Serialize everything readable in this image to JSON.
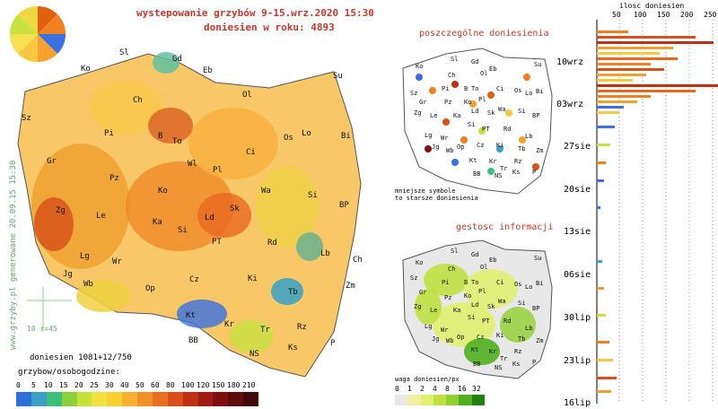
{
  "header": {
    "line1": "wystepowanie grzybów 9-15.wrz.2020 15:30",
    "line2": "doniesien w roku: 4893"
  },
  "side_text": "www.grzyby.pl generowane 20.09.15 15:30",
  "main_map": {
    "scale_label": "10 r=45",
    "reports": "doniesien 1081+12/750",
    "legend_title": "grzybow/osobogodzine:",
    "legend_values": [
      "0",
      "5",
      "10",
      "15",
      "20",
      "25",
      "30",
      "40",
      "50",
      "60",
      "80",
      "100",
      "120",
      "150",
      "180",
      "210"
    ],
    "legend_colors": [
      "#2e6fd8",
      "#3aa0c8",
      "#3cbf7a",
      "#8cd03c",
      "#c8e03a",
      "#f0e040",
      "#f8d030",
      "#f8b030",
      "#f09028",
      "#e87020",
      "#d85018",
      "#c03010",
      "#a01c10",
      "#801010",
      "#600c0c",
      "#400808"
    ],
    "cities": [
      {
        "name": "Sl"
      },
      {
        "name": "Gd"
      },
      {
        "name": "Ko"
      },
      {
        "name": "Eb"
      },
      {
        "name": "Su"
      },
      {
        "name": "Ch"
      },
      {
        "name": "Ol"
      },
      {
        "name": "Sz"
      },
      {
        "name": "Pi"
      },
      {
        "name": "B"
      },
      {
        "name": "To"
      },
      {
        "name": "Lo"
      },
      {
        "name": "Os"
      },
      {
        "name": "Bi"
      },
      {
        "name": "Gr"
      },
      {
        "name": "Wl"
      },
      {
        "name": "Pl"
      },
      {
        "name": "Ci"
      },
      {
        "name": "Pz"
      },
      {
        "name": "Ko"
      },
      {
        "name": "Wa"
      },
      {
        "name": "Si"
      },
      {
        "name": "Zg"
      },
      {
        "name": "Le"
      },
      {
        "name": "Ka"
      },
      {
        "name": "Ld"
      },
      {
        "name": "Sk"
      },
      {
        "name": "BP"
      },
      {
        "name": "Si"
      },
      {
        "name": "PT"
      },
      {
        "name": "Rd"
      },
      {
        "name": "Lb"
      },
      {
        "name": "Ch"
      },
      {
        "name": "Lg"
      },
      {
        "name": "Wr"
      },
      {
        "name": "Jg"
      },
      {
        "name": "Wb"
      },
      {
        "name": "Op"
      },
      {
        "name": "Cz"
      },
      {
        "name": "Ki"
      },
      {
        "name": "Tb"
      },
      {
        "name": "Zm"
      },
      {
        "name": "Kt"
      },
      {
        "name": "Kr"
      },
      {
        "name": "Rz"
      },
      {
        "name": "Tr"
      },
      {
        "name": "BB"
      },
      {
        "name": "NS"
      },
      {
        "name": "Ks"
      },
      {
        "name": "P"
      }
    ]
  },
  "panel_reports": {
    "title": "poszczególne doniesienia",
    "note1": "mniejsze symbole",
    "note2": "to starsze doniesienia"
  },
  "panel_density": {
    "title": "gestosc informacji",
    "legend_title": "waga doniesien/px",
    "legend_values": [
      "0",
      "1",
      "2",
      "4",
      "8",
      "16",
      "32"
    ],
    "legend_colors": [
      "#e8e8e8",
      "#f0f0a0",
      "#e0f070",
      "#c0e040",
      "#90d030",
      "#50b020",
      "#208010"
    ]
  },
  "histogram": {
    "title": "ilosc doniesien",
    "ticks": [
      "50",
      "100",
      "150",
      "200",
      "250"
    ],
    "date_labels": [
      "10wrz",
      "03wrz",
      "27sie",
      "20sie",
      "13sie",
      "06sie",
      "30lip",
      "23lip",
      "16lip"
    ]
  }
}
